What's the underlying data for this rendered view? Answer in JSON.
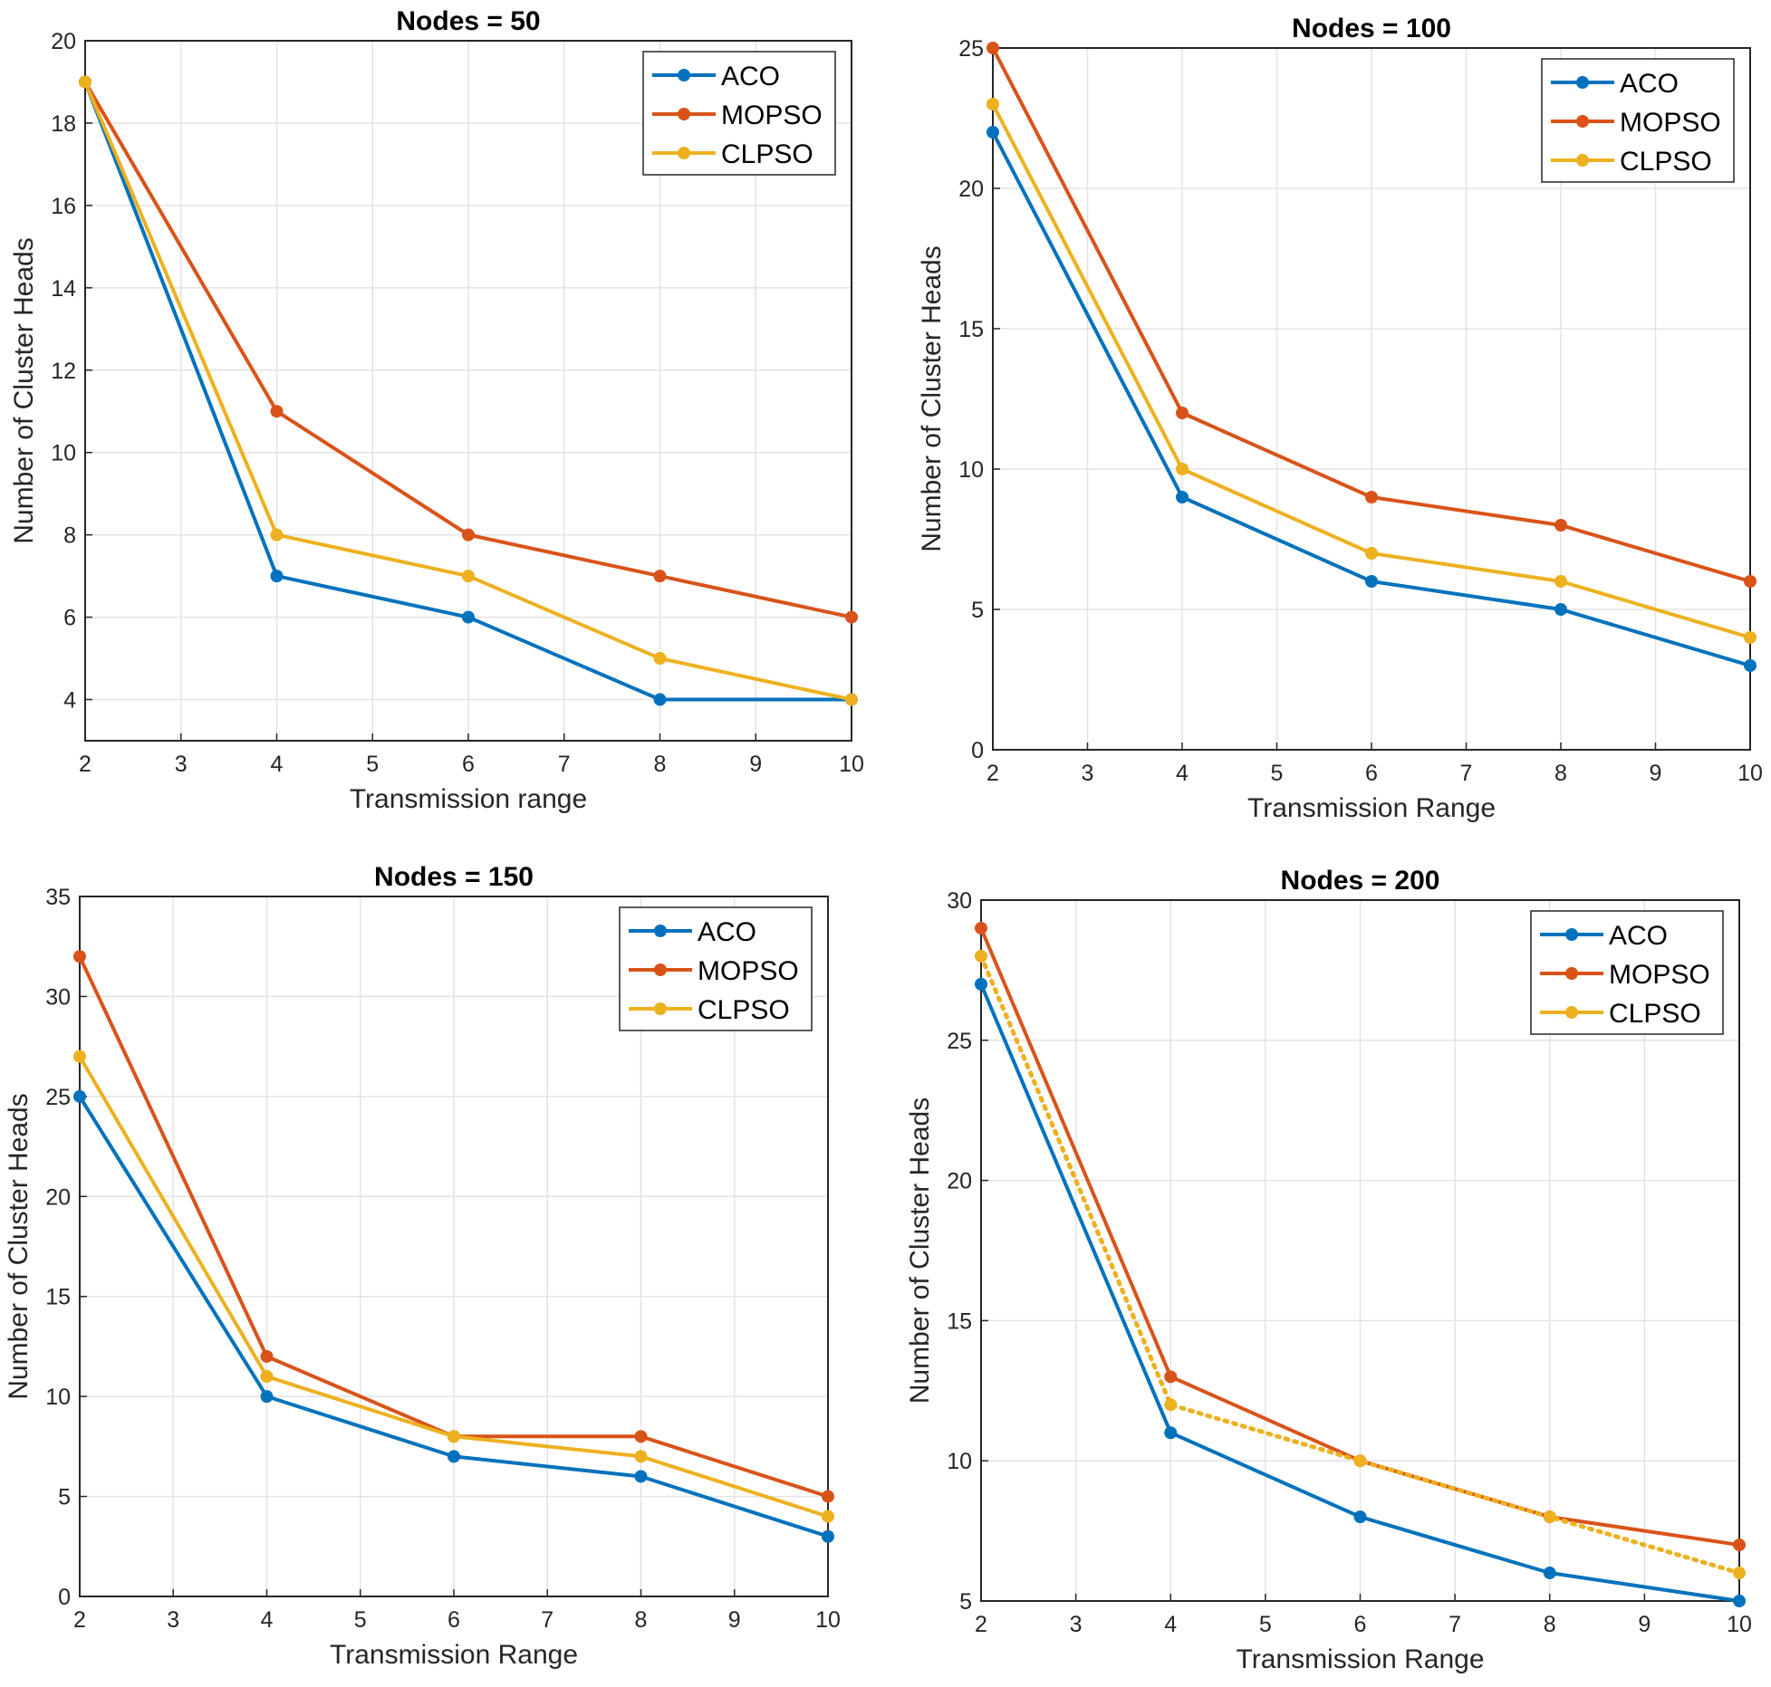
{
  "chart_data": [
    {
      "type": "line",
      "title": "Nodes = 50",
      "xlabel": "Transmission range",
      "ylabel": "Number of Cluster Heads",
      "x": [
        2,
        4,
        6,
        8,
        10
      ],
      "xlim": [
        2,
        10
      ],
      "ylim": [
        3,
        20
      ],
      "xticks": [
        2,
        3,
        4,
        5,
        6,
        7,
        8,
        9,
        10
      ],
      "yticks": [
        4,
        6,
        8,
        10,
        12,
        14,
        16,
        18,
        20
      ],
      "grid": true,
      "legend_position": "top-right",
      "series": [
        {
          "name": "ACO",
          "color": "#0072BD",
          "values": [
            19,
            7,
            6,
            4,
            4
          ]
        },
        {
          "name": "MOPSO",
          "color": "#D95319",
          "values": [
            19,
            11,
            8,
            7,
            6
          ]
        },
        {
          "name": "CLPSO",
          "color": "#EDB120",
          "values": [
            19,
            8,
            7,
            5,
            4
          ]
        }
      ]
    },
    {
      "type": "line",
      "title": "Nodes = 100",
      "xlabel": "Transmission Range",
      "ylabel": "Number of Cluster Heads",
      "x": [
        2,
        4,
        6,
        8,
        10
      ],
      "xlim": [
        2,
        10
      ],
      "ylim": [
        0,
        25
      ],
      "xticks": [
        2,
        3,
        4,
        5,
        6,
        7,
        8,
        9,
        10
      ],
      "yticks": [
        0,
        5,
        10,
        15,
        20,
        25
      ],
      "grid": true,
      "legend_position": "top-right",
      "series": [
        {
          "name": "ACO",
          "color": "#0072BD",
          "values": [
            22,
            9,
            6,
            5,
            3
          ]
        },
        {
          "name": "MOPSO",
          "color": "#D95319",
          "values": [
            25,
            12,
            9,
            8,
            6
          ]
        },
        {
          "name": "CLPSO",
          "color": "#EDB120",
          "values": [
            23,
            10,
            7,
            6,
            4
          ]
        }
      ]
    },
    {
      "type": "line",
      "title": "Nodes = 150",
      "xlabel": "Transmission Range",
      "ylabel": "Number of Cluster Heads",
      "x": [
        2,
        4,
        6,
        8,
        10
      ],
      "xlim": [
        2,
        10
      ],
      "ylim": [
        0,
        35
      ],
      "xticks": [
        2,
        3,
        4,
        5,
        6,
        7,
        8,
        9,
        10
      ],
      "yticks": [
        0,
        5,
        10,
        15,
        20,
        25,
        30,
        35
      ],
      "grid": true,
      "legend_position": "top-right",
      "series": [
        {
          "name": "ACO",
          "color": "#0072BD",
          "values": [
            25,
            10,
            7,
            6,
            3
          ]
        },
        {
          "name": "MOPSO",
          "color": "#D95319",
          "values": [
            32,
            12,
            8,
            8,
            5
          ]
        },
        {
          "name": "CLPSO",
          "color": "#EDB120",
          "values": [
            27,
            11,
            8,
            7,
            4
          ]
        }
      ]
    },
    {
      "type": "line",
      "title": "Nodes = 200",
      "xlabel": "Transmission Range",
      "ylabel": "Number of Cluster Heads",
      "x": [
        2,
        4,
        6,
        8,
        10
      ],
      "xlim": [
        2,
        10
      ],
      "ylim": [
        5,
        30
      ],
      "xticks": [
        2,
        3,
        4,
        5,
        6,
        7,
        8,
        9,
        10
      ],
      "yticks": [
        5,
        10,
        15,
        20,
        25,
        30
      ],
      "grid": true,
      "legend_position": "top-right",
      "series": [
        {
          "name": "ACO",
          "color": "#0072BD",
          "values": [
            27,
            11,
            8,
            6,
            5
          ]
        },
        {
          "name": "MOPSO",
          "color": "#D95319",
          "values": [
            29,
            13,
            10,
            8,
            7
          ]
        },
        {
          "name": "CLPSO",
          "color": "#EDB120",
          "values": [
            28,
            12,
            10,
            8,
            6
          ],
          "line_style": "dotted"
        }
      ]
    }
  ]
}
